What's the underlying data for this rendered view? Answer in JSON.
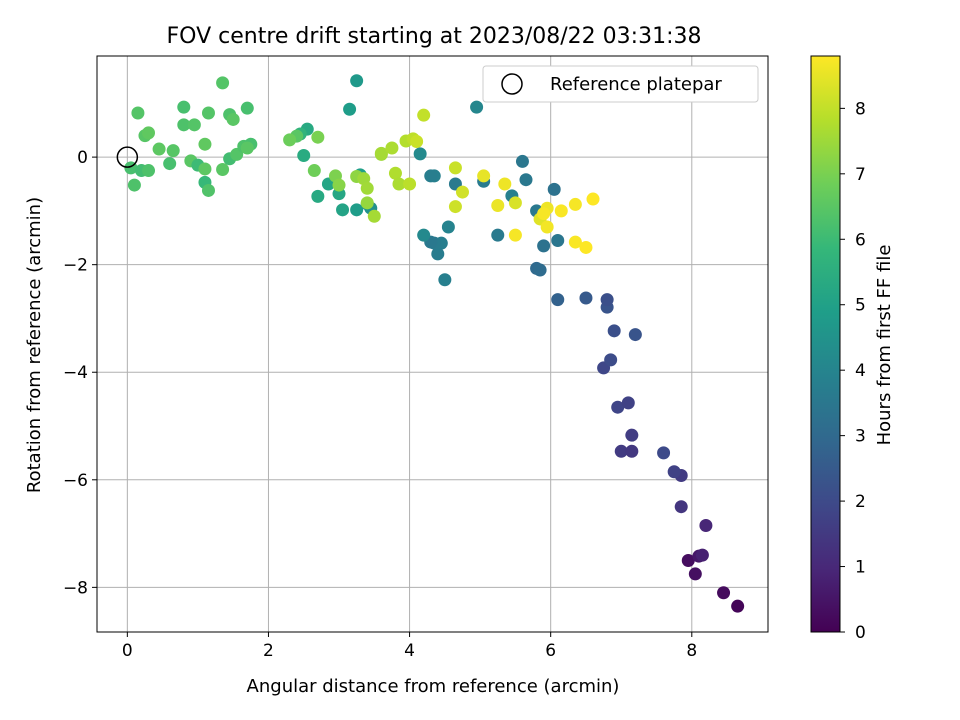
{
  "chart_data": {
    "type": "scatter",
    "title": "FOV centre drift starting at 2023/08/22 03:31:38",
    "xlabel": "Angular distance from reference (arcmin)",
    "ylabel": "Rotation from reference (arcmin)",
    "xlim": [
      -0.43,
      9.08
    ],
    "ylim": [
      -8.83,
      1.88
    ],
    "xticks": [
      {
        "v": 0,
        "t": "0"
      },
      {
        "v": 2,
        "t": "2"
      },
      {
        "v": 4,
        "t": "4"
      },
      {
        "v": 6,
        "t": "6"
      },
      {
        "v": 8,
        "t": "8"
      }
    ],
    "yticks": [
      {
        "v": 0,
        "t": "0"
      },
      {
        "v": -2,
        "t": "−2"
      },
      {
        "v": -4,
        "t": "−4"
      },
      {
        "v": -6,
        "t": "−6"
      },
      {
        "v": -8,
        "t": "−8"
      }
    ],
    "grid": true,
    "legend": {
      "position": "top-right",
      "label": "Reference platepar"
    },
    "reference_point": {
      "x": 0,
      "y": 0
    },
    "colorbar": {
      "label": "Hours from first FF file",
      "range": [
        0,
        8.8
      ],
      "ticks": [
        {
          "v": 0,
          "t": "0"
        },
        {
          "v": 1,
          "t": "1"
        },
        {
          "v": 2,
          "t": "2"
        },
        {
          "v": 3,
          "t": "3"
        },
        {
          "v": 4,
          "t": "4"
        },
        {
          "v": 5,
          "t": "5"
        },
        {
          "v": 6,
          "t": "6"
        },
        {
          "v": 7,
          "t": "7"
        },
        {
          "v": 8,
          "t": "8"
        }
      ],
      "colormap": "viridis"
    },
    "points": [
      {
        "x": 8.65,
        "y": -8.35,
        "c": 0.1
      },
      {
        "x": 8.45,
        "y": -8.1,
        "c": 0.25
      },
      {
        "x": 8.05,
        "y": -7.75,
        "c": 0.35
      },
      {
        "x": 7.95,
        "y": -7.5,
        "c": 0.3
      },
      {
        "x": 8.1,
        "y": -7.42,
        "c": 0.55
      },
      {
        "x": 8.15,
        "y": -7.4,
        "c": 0.8
      },
      {
        "x": 8.2,
        "y": -6.85,
        "c": 0.95
      },
      {
        "x": 7.85,
        "y": -6.5,
        "c": 1.4
      },
      {
        "x": 7.85,
        "y": -5.92,
        "c": 1.55
      },
      {
        "x": 7.75,
        "y": -5.85,
        "c": 1.75
      },
      {
        "x": 7.6,
        "y": -5.5,
        "c": 2.0
      },
      {
        "x": 7.0,
        "y": -5.47,
        "c": 1.55
      },
      {
        "x": 7.15,
        "y": -5.47,
        "c": 1.45
      },
      {
        "x": 7.15,
        "y": -5.17,
        "c": 1.6
      },
      {
        "x": 6.95,
        "y": -4.65,
        "c": 1.85
      },
      {
        "x": 7.1,
        "y": -4.57,
        "c": 1.75
      },
      {
        "x": 6.75,
        "y": -3.92,
        "c": 1.9
      },
      {
        "x": 6.85,
        "y": -3.77,
        "c": 2.05
      },
      {
        "x": 6.9,
        "y": -3.23,
        "c": 2.15
      },
      {
        "x": 7.2,
        "y": -3.3,
        "c": 2.3
      },
      {
        "x": 6.8,
        "y": -2.79,
        "c": 2.3
      },
      {
        "x": 6.8,
        "y": -2.65,
        "c": 2.15
      },
      {
        "x": 6.5,
        "y": -2.62,
        "c": 2.5
      },
      {
        "x": 6.1,
        "y": -2.65,
        "c": 2.75
      },
      {
        "x": 5.8,
        "y": -2.07,
        "c": 3.0
      },
      {
        "x": 5.85,
        "y": -2.1,
        "c": 3.1
      },
      {
        "x": 5.9,
        "y": -1.65,
        "c": 3.3
      },
      {
        "x": 6.1,
        "y": -1.55,
        "c": 3.45
      },
      {
        "x": 6.05,
        "y": -0.6,
        "c": 3.3
      },
      {
        "x": 5.8,
        "y": -1.0,
        "c": 3.55
      },
      {
        "x": 5.6,
        "y": -0.08,
        "c": 3.5
      },
      {
        "x": 5.65,
        "y": -0.42,
        "c": 3.55
      },
      {
        "x": 5.45,
        "y": -0.72,
        "c": 3.85
      },
      {
        "x": 5.25,
        "y": -1.45,
        "c": 3.6
      },
      {
        "x": 5.05,
        "y": -0.45,
        "c": 3.65
      },
      {
        "x": 4.95,
        "y": 0.93,
        "c": 4.05
      },
      {
        "x": 4.65,
        "y": -0.5,
        "c": 3.6
      },
      {
        "x": 4.55,
        "y": -1.3,
        "c": 3.95
      },
      {
        "x": 4.5,
        "y": -2.28,
        "c": 3.8
      },
      {
        "x": 4.45,
        "y": -1.6,
        "c": 3.75
      },
      {
        "x": 4.4,
        "y": -1.8,
        "c": 3.7
      },
      {
        "x": 4.35,
        "y": -1.6,
        "c": 3.65
      },
      {
        "x": 4.3,
        "y": -1.58,
        "c": 3.55
      },
      {
        "x": 4.35,
        "y": -0.35,
        "c": 3.85
      },
      {
        "x": 4.3,
        "y": -0.35,
        "c": 3.75
      },
      {
        "x": 4.2,
        "y": -1.45,
        "c": 4.15
      },
      {
        "x": 4.15,
        "y": 0.06,
        "c": 4.2
      },
      {
        "x": 3.45,
        "y": -0.95,
        "c": 4.4
      },
      {
        "x": 3.4,
        "y": -0.87,
        "c": 4.6
      },
      {
        "x": 3.25,
        "y": -0.98,
        "c": 4.85
      },
      {
        "x": 3.25,
        "y": 1.42,
        "c": 4.7
      },
      {
        "x": 3.15,
        "y": 0.89,
        "c": 4.85
      },
      {
        "x": 3.3,
        "y": -0.33,
        "c": 4.95
      },
      {
        "x": 3.05,
        "y": -0.98,
        "c": 5.1
      },
      {
        "x": 3.0,
        "y": -0.68,
        "c": 5.2
      },
      {
        "x": 2.85,
        "y": -0.5,
        "c": 5.15
      },
      {
        "x": 2.7,
        "y": -0.73,
        "c": 5.3
      },
      {
        "x": 2.55,
        "y": 0.52,
        "c": 5.3
      },
      {
        "x": 2.5,
        "y": 0.03,
        "c": 5.4
      },
      {
        "x": 2.45,
        "y": 0.43,
        "c": 5.7
      },
      {
        "x": 2.4,
        "y": 0.39,
        "c": 6.5
      },
      {
        "x": 2.3,
        "y": 0.32,
        "c": 6.8
      },
      {
        "x": 2.65,
        "y": -0.25,
        "c": 6.85
      },
      {
        "x": 2.7,
        "y": 0.37,
        "c": 7.0
      },
      {
        "x": 2.95,
        "y": -0.35,
        "c": 7.05
      },
      {
        "x": 3.0,
        "y": -0.52,
        "c": 7.2
      },
      {
        "x": 3.25,
        "y": -0.36,
        "c": 7.3
      },
      {
        "x": 3.35,
        "y": -0.4,
        "c": 7.5
      },
      {
        "x": 3.4,
        "y": -0.58,
        "c": 7.55
      },
      {
        "x": 3.5,
        "y": -1.1,
        "c": 7.6
      },
      {
        "x": 3.4,
        "y": -0.85,
        "c": 7.4
      },
      {
        "x": 3.6,
        "y": 0.05,
        "c": 7.5
      },
      {
        "x": 3.6,
        "y": 0.07,
        "c": 7.6
      },
      {
        "x": 3.75,
        "y": 0.17,
        "c": 7.7
      },
      {
        "x": 3.8,
        "y": -0.3,
        "c": 7.75
      },
      {
        "x": 3.85,
        "y": -0.5,
        "c": 7.7
      },
      {
        "x": 3.95,
        "y": 0.3,
        "c": 7.8
      },
      {
        "x": 4.0,
        "y": -0.5,
        "c": 7.9
      },
      {
        "x": 4.05,
        "y": 0.34,
        "c": 7.95
      },
      {
        "x": 4.1,
        "y": 0.29,
        "c": 8.1
      },
      {
        "x": 4.2,
        "y": 0.78,
        "c": 8.0
      },
      {
        "x": 4.65,
        "y": -0.2,
        "c": 8.1
      },
      {
        "x": 4.65,
        "y": -0.92,
        "c": 8.15
      },
      {
        "x": 4.75,
        "y": -0.65,
        "c": 8.2
      },
      {
        "x": 5.05,
        "y": -0.35,
        "c": 8.5
      },
      {
        "x": 5.25,
        "y": -0.9,
        "c": 8.55
      },
      {
        "x": 5.35,
        "y": -0.5,
        "c": 8.6
      },
      {
        "x": 5.5,
        "y": -0.85,
        "c": 8.3
      },
      {
        "x": 5.5,
        "y": -1.45,
        "c": 8.7
      },
      {
        "x": 5.85,
        "y": -1.15,
        "c": 8.4
      },
      {
        "x": 5.95,
        "y": -0.95,
        "c": 8.6
      },
      {
        "x": 5.95,
        "y": -1.3,
        "c": 8.65
      },
      {
        "x": 5.9,
        "y": -1.05,
        "c": 8.7
      },
      {
        "x": 6.15,
        "y": -1.0,
        "c": 8.75
      },
      {
        "x": 6.35,
        "y": -0.88,
        "c": 8.7
      },
      {
        "x": 6.35,
        "y": -1.58,
        "c": 8.75
      },
      {
        "x": 6.5,
        "y": -1.68,
        "c": 8.8
      },
      {
        "x": 6.6,
        "y": -0.78,
        "c": 8.8
      },
      {
        "x": 0.05,
        "y": -0.2,
        "c": 6.2
      },
      {
        "x": 0.1,
        "y": -0.52,
        "c": 6.3
      },
      {
        "x": 0.15,
        "y": 0.82,
        "c": 6.4
      },
      {
        "x": 0.2,
        "y": -0.25,
        "c": 6.1
      },
      {
        "x": 0.25,
        "y": 0.4,
        "c": 6.45
      },
      {
        "x": 0.3,
        "y": -0.25,
        "c": 6.3
      },
      {
        "x": 0.3,
        "y": 0.45,
        "c": 6.6
      },
      {
        "x": 0.45,
        "y": 0.15,
        "c": 6.55
      },
      {
        "x": 0.6,
        "y": -0.12,
        "c": 6.2
      },
      {
        "x": 0.65,
        "y": 0.12,
        "c": 6.45
      },
      {
        "x": 0.8,
        "y": 0.6,
        "c": 6.3
      },
      {
        "x": 0.8,
        "y": 0.93,
        "c": 6.2
      },
      {
        "x": 0.9,
        "y": -0.07,
        "c": 6.5
      },
      {
        "x": 0.95,
        "y": 0.6,
        "c": 6.4
      },
      {
        "x": 1.0,
        "y": -0.15,
        "c": 6.0
      },
      {
        "x": 1.1,
        "y": -0.47,
        "c": 5.9
      },
      {
        "x": 1.1,
        "y": 0.24,
        "c": 6.6
      },
      {
        "x": 1.1,
        "y": -0.22,
        "c": 6.55
      },
      {
        "x": 1.15,
        "y": 0.82,
        "c": 6.4
      },
      {
        "x": 1.15,
        "y": -0.62,
        "c": 6.35
      },
      {
        "x": 1.35,
        "y": -0.23,
        "c": 6.5
      },
      {
        "x": 1.35,
        "y": 1.38,
        "c": 6.4
      },
      {
        "x": 1.45,
        "y": 0.79,
        "c": 6.3
      },
      {
        "x": 1.45,
        "y": -0.03,
        "c": 6.1
      },
      {
        "x": 1.5,
        "y": 0.7,
        "c": 6.5
      },
      {
        "x": 1.55,
        "y": 0.05,
        "c": 6.4
      },
      {
        "x": 1.65,
        "y": 0.2,
        "c": 6.3
      },
      {
        "x": 1.7,
        "y": 0.91,
        "c": 6.2
      },
      {
        "x": 1.75,
        "y": 0.24,
        "c": 6.2
      },
      {
        "x": 1.7,
        "y": 0.17,
        "c": 6.5
      }
    ]
  }
}
